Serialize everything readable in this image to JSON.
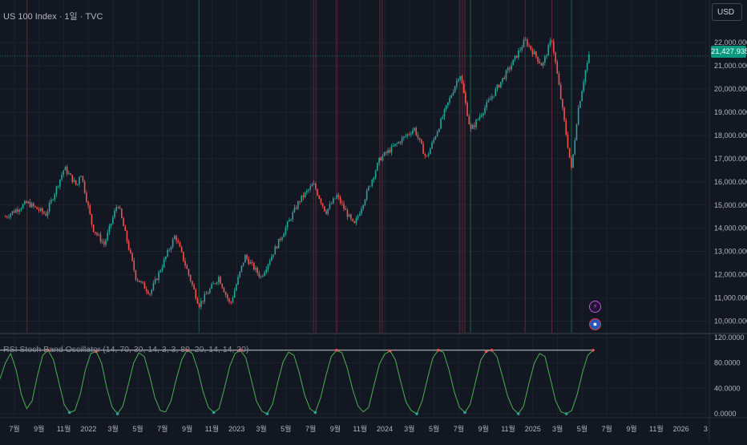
{
  "header": {
    "title": "US 100 Index · 1일 · TVC",
    "currency": "USD",
    "last_price_label": "21,427.9358"
  },
  "indicator": {
    "label": "RSI Stoch Band Oscillator (14, 70, 30, 14, 3, 3, 80, 20, 14, 14, 30)"
  },
  "events": {
    "lightning_icon": "⚡",
    "flag_icon": "us-flag-icon"
  },
  "colors": {
    "background": "#131722",
    "up": "#26a69a",
    "down": "#ef5350",
    "osc": "#4caf50",
    "accent": "#089981"
  },
  "chart_data": [
    {
      "type": "candlestick",
      "title": "US 100 Index · 1일 · TVC",
      "price_axis": [
        "22,000.0000",
        "21,000.0000",
        "20,000.0000",
        "19,000.0000",
        "18,000.0000",
        "17,000.0000",
        "16,000.0000",
        "15,000.0000",
        "14,000.0000",
        "13,000.0000",
        "12,000.0000",
        "11,000.0000",
        "10,000.0000"
      ],
      "time_axis": [
        "7월",
        "9월",
        "11월",
        "2022",
        "3월",
        "5월",
        "7월",
        "9월",
        "11월",
        "2023",
        "3월",
        "5월",
        "7월",
        "9월",
        "11월",
        "2024",
        "3월",
        "5월",
        "7월",
        "9월",
        "11월",
        "2025",
        "3월",
        "5월",
        "7월",
        "9월",
        "11월",
        "2026",
        "3"
      ],
      "ylim": [
        9500,
        22800
      ],
      "last_value": 21427.9358,
      "close_path": [
        {
          "x": "2021-06-28",
          "y": 14500
        },
        {
          "x": "2021-08-20",
          "y": 15100
        },
        {
          "x": "2021-10-05",
          "y": 14600
        },
        {
          "x": "2021-11-19",
          "y": 16600
        },
        {
          "x": "2021-12-20",
          "y": 15800
        },
        {
          "x": "2021-12-28",
          "y": 16500
        },
        {
          "x": "2022-01-27",
          "y": 14000
        },
        {
          "x": "2022-02-24",
          "y": 13300
        },
        {
          "x": "2022-03-29",
          "y": 15100
        },
        {
          "x": "2022-05-12",
          "y": 11900
        },
        {
          "x": "2022-06-16",
          "y": 11200
        },
        {
          "x": "2022-08-16",
          "y": 13700
        },
        {
          "x": "2022-10-13",
          "y": 10700
        },
        {
          "x": "2022-11-30",
          "y": 11900
        },
        {
          "x": "2022-12-28",
          "y": 10700
        },
        {
          "x": "2023-02-02",
          "y": 12800
        },
        {
          "x": "2023-03-13",
          "y": 11900
        },
        {
          "x": "2023-06-15",
          "y": 15200
        },
        {
          "x": "2023-07-19",
          "y": 15900
        },
        {
          "x": "2023-08-18",
          "y": 14700
        },
        {
          "x": "2023-09-14",
          "y": 15400
        },
        {
          "x": "2023-10-26",
          "y": 14100
        },
        {
          "x": "2023-12-28",
          "y": 17000
        },
        {
          "x": "2024-03-21",
          "y": 18300
        },
        {
          "x": "2024-04-19",
          "y": 17000
        },
        {
          "x": "2024-07-10",
          "y": 20700
        },
        {
          "x": "2024-08-05",
          "y": 18200
        },
        {
          "x": "2024-11-11",
          "y": 21000
        },
        {
          "x": "2024-12-16",
          "y": 22100
        },
        {
          "x": "2025-01-27",
          "y": 21000
        },
        {
          "x": "2025-02-19",
          "y": 22200
        },
        {
          "x": "2025-04-08",
          "y": 16500
        },
        {
          "x": "2025-04-23",
          "y": 19000
        },
        {
          "x": "2025-05-12",
          "y": 20800
        },
        {
          "x": "2025-05-21",
          "y": 21428
        }
      ],
      "signal_lines": {
        "green": [
          "2022-10-13",
          "2024-08-05",
          "2025-04-08"
        ],
        "red": [
          "2021-08-20",
          "2023-07-19",
          "2023-07-25",
          "2023-09-14",
          "2023-12-28",
          "2024-01-03",
          "2024-07-10",
          "2024-07-16",
          "2024-07-22",
          "2024-12-16",
          "2025-02-19"
        ]
      }
    },
    {
      "type": "line",
      "title": "RSI Stoch Band Oscillator (14, 70, 30, 14, 3, 3, 80, 20, 14, 14, 30)",
      "y_axis": [
        "120.0000",
        "80.0000",
        "40.0000",
        "0.0000"
      ],
      "ylim": [
        -5,
        125
      ],
      "band": [
        100,
        0
      ],
      "series": [
        {
          "values": [
            55,
            80,
            95,
            70,
            30,
            8,
            20,
            60,
            92,
            100,
            85,
            50,
            15,
            2,
            5,
            30,
            70,
            95,
            98,
            80,
            40,
            10,
            0,
            12,
            45,
            80,
            96,
            90,
            60,
            25,
            5,
            3,
            20,
            55,
            85,
            100,
            95,
            70,
            35,
            10,
            2,
            8,
            40,
            75,
            95,
            100,
            88,
            55,
            20,
            4,
            0,
            15,
            50,
            82,
            97,
            92,
            65,
            30,
            8,
            2,
            25,
            60,
            90,
            100,
            96,
            72,
            38,
            12,
            3,
            10,
            45,
            78,
            94,
            99,
            85,
            50,
            18,
            5,
            0,
            20,
            55,
            88,
            100,
            97,
            70,
            35,
            10,
            2,
            15,
            50,
            85,
            98,
            100,
            90,
            60,
            28,
            8,
            0,
            12,
            48,
            80,
            95,
            90,
            55,
            20,
            3,
            0,
            5,
            30,
            65,
            92,
            100
          ]
        }
      ]
    }
  ]
}
